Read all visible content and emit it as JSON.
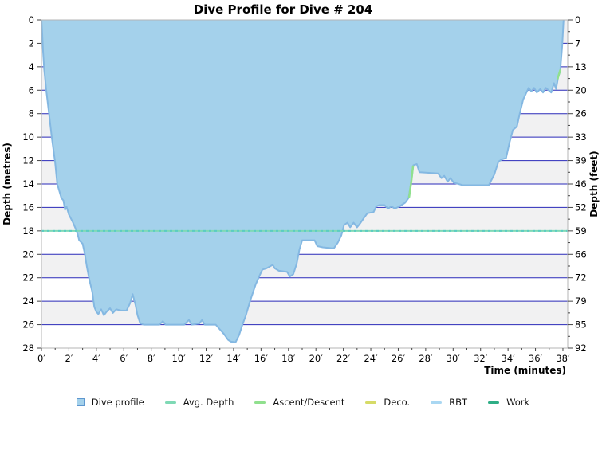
{
  "title": "Dive Profile for Dive # 204",
  "chart_data": {
    "type": "area",
    "title": "Dive Profile for Dive # 204",
    "xlabel": "Time (minutes)",
    "ylabel_left": "Depth (metres)",
    "ylabel_right": "Depth (feet)",
    "xlim": [
      0,
      38.35
    ],
    "ylim": [
      0,
      28
    ],
    "grid": "horizontal-blue-lines-with-alternating-gray-bands",
    "legend_position": "bottom-center",
    "x_tick_values": [
      0,
      2,
      4,
      6,
      8,
      10,
      12,
      14,
      16,
      18,
      20,
      22,
      24,
      26,
      28,
      30,
      32,
      34,
      36,
      38
    ],
    "x_tick_labels": [
      "0′",
      "2′",
      "4′",
      "6′",
      "8′",
      "10′",
      "12′",
      "14′",
      "16′",
      "18′",
      "20′",
      "22′",
      "24′",
      "26′",
      "28′",
      "30′",
      "32′",
      "34′",
      "36′",
      "38′"
    ],
    "y_tick_values_m": [
      0,
      2,
      4,
      6,
      8,
      10,
      12,
      14,
      16,
      18,
      20,
      22,
      24,
      26,
      28
    ],
    "y_tick_labels_left_m": [
      "0",
      "2",
      "4",
      "6",
      "8",
      "10",
      "12",
      "14",
      "16",
      "18",
      "20",
      "22",
      "24",
      "26",
      "28"
    ],
    "y_tick_labels_right_ft": [
      "0",
      "7",
      "13",
      "20",
      "26",
      "33",
      "39",
      "46",
      "52",
      "59",
      "66",
      "72",
      "79",
      "85",
      "92"
    ],
    "avg_depth_m": 18,
    "series": [
      {
        "name": "Dive profile",
        "unit_x": "minutes",
        "unit_y": "metres",
        "points": [
          [
            0,
            0
          ],
          [
            0.06,
            1.2
          ],
          [
            0.12,
            2.8
          ],
          [
            0.2,
            4.2
          ],
          [
            0.35,
            6.0
          ],
          [
            0.55,
            8.0
          ],
          [
            0.75,
            10.0
          ],
          [
            1.0,
            12.2
          ],
          [
            1.15,
            14.0
          ],
          [
            1.45,
            15.2
          ],
          [
            1.6,
            15.4
          ],
          [
            1.72,
            16.2
          ],
          [
            1.82,
            15.9
          ],
          [
            2.0,
            16.6
          ],
          [
            2.3,
            17.3
          ],
          [
            2.6,
            18.1
          ],
          [
            2.75,
            18.8
          ],
          [
            3.0,
            19.1
          ],
          [
            3.15,
            19.9
          ],
          [
            3.3,
            21.0
          ],
          [
            3.5,
            22.2
          ],
          [
            3.7,
            23.2
          ],
          [
            3.85,
            24.5
          ],
          [
            4.0,
            24.9
          ],
          [
            4.15,
            25.1
          ],
          [
            4.35,
            24.7
          ],
          [
            4.55,
            25.2
          ],
          [
            4.75,
            24.9
          ],
          [
            5.0,
            24.6
          ],
          [
            5.2,
            25.0
          ],
          [
            5.45,
            24.7
          ],
          [
            5.8,
            24.8
          ],
          [
            6.2,
            24.8
          ],
          [
            6.45,
            24.2
          ],
          [
            6.65,
            23.4
          ],
          [
            6.85,
            24.3
          ],
          [
            7.0,
            25.2
          ],
          [
            7.2,
            25.9
          ],
          [
            7.45,
            26.0
          ],
          [
            8.6,
            26.0
          ],
          [
            8.85,
            25.7
          ],
          [
            9.05,
            26.0
          ],
          [
            10.4,
            26.0
          ],
          [
            10.75,
            25.6
          ],
          [
            10.95,
            26.0
          ],
          [
            11.5,
            25.9
          ],
          [
            11.7,
            25.6
          ],
          [
            11.9,
            26.0
          ],
          [
            12.7,
            26.0
          ],
          [
            13.0,
            26.4
          ],
          [
            13.3,
            26.8
          ],
          [
            13.6,
            27.3
          ],
          [
            13.8,
            27.45
          ],
          [
            14.15,
            27.5
          ],
          [
            14.4,
            26.9
          ],
          [
            14.65,
            26.0
          ],
          [
            14.9,
            25.2
          ],
          [
            15.2,
            24.0
          ],
          [
            15.6,
            22.6
          ],
          [
            15.9,
            21.8
          ],
          [
            16.1,
            21.3
          ],
          [
            16.4,
            21.2
          ],
          [
            16.7,
            21.0
          ],
          [
            16.85,
            20.9
          ],
          [
            17.0,
            21.2
          ],
          [
            17.3,
            21.4
          ],
          [
            17.9,
            21.5
          ],
          [
            18.1,
            21.9
          ],
          [
            18.35,
            21.7
          ],
          [
            18.6,
            20.8
          ],
          [
            18.8,
            19.6
          ],
          [
            19.0,
            18.8
          ],
          [
            19.9,
            18.8
          ],
          [
            20.1,
            19.3
          ],
          [
            20.5,
            19.4
          ],
          [
            21.3,
            19.5
          ],
          [
            21.6,
            19.0
          ],
          [
            21.85,
            18.4
          ],
          [
            22.05,
            17.5
          ],
          [
            22.3,
            17.3
          ],
          [
            22.5,
            17.7
          ],
          [
            22.75,
            17.3
          ],
          [
            23.0,
            17.7
          ],
          [
            23.2,
            17.4
          ],
          [
            23.5,
            16.9
          ],
          [
            23.75,
            16.5
          ],
          [
            24.2,
            16.4
          ],
          [
            24.4,
            15.9
          ],
          [
            24.6,
            15.8
          ],
          [
            25.0,
            15.8
          ],
          [
            25.25,
            16.1
          ],
          [
            25.5,
            15.9
          ],
          [
            25.75,
            16.1
          ],
          [
            26.1,
            15.9
          ],
          [
            26.5,
            15.6
          ],
          [
            26.75,
            15.2
          ],
          [
            26.95,
            13.8
          ],
          [
            27.1,
            12.4
          ],
          [
            27.35,
            12.3
          ],
          [
            27.55,
            13.0
          ],
          [
            28.9,
            13.1
          ],
          [
            29.15,
            13.5
          ],
          [
            29.35,
            13.3
          ],
          [
            29.6,
            13.8
          ],
          [
            29.8,
            13.5
          ],
          [
            30.05,
            13.9
          ],
          [
            30.4,
            14.0
          ],
          [
            30.7,
            14.1
          ],
          [
            32.6,
            14.1
          ],
          [
            33.0,
            13.2
          ],
          [
            33.3,
            12.1
          ],
          [
            33.55,
            11.9
          ],
          [
            33.85,
            11.8
          ],
          [
            34.1,
            10.5
          ],
          [
            34.35,
            9.4
          ],
          [
            34.65,
            9.1
          ],
          [
            34.85,
            8.0
          ],
          [
            35.1,
            6.8
          ],
          [
            35.3,
            6.3
          ],
          [
            35.5,
            5.8
          ],
          [
            35.7,
            6.1
          ],
          [
            35.9,
            5.8
          ],
          [
            36.1,
            6.2
          ],
          [
            36.35,
            5.9
          ],
          [
            36.55,
            6.2
          ],
          [
            36.75,
            5.8
          ],
          [
            36.95,
            6.0
          ],
          [
            37.15,
            6.2
          ],
          [
            37.35,
            5.4
          ],
          [
            37.5,
            5.9
          ],
          [
            37.65,
            4.9
          ],
          [
            37.8,
            4.4
          ],
          [
            37.95,
            2.2
          ],
          [
            38.05,
            0
          ]
        ]
      }
    ],
    "ascent_descent_segments": [
      [
        [
          26.8,
          15.1
        ],
        [
          26.95,
          13.8
        ],
        [
          27.08,
          12.5
        ]
      ],
      [
        [
          37.62,
          5.0
        ],
        [
          37.8,
          4.3
        ]
      ]
    ],
    "colors": {
      "profile_fill": "#a4d1eb",
      "profile_outline": "#84b8e2",
      "gridline_blue": "#2a2ab9",
      "band_gray": "#f1f1f2",
      "plot_border": "#b4b4b4",
      "avg_depth_line": "#7fd9b5",
      "avg_depth_dash": "#5accc2",
      "ascent_descent": "#90e08e",
      "tick": "#444444",
      "text": "#000000"
    },
    "legend": [
      {
        "label": "Dive profile",
        "color": "#a4d1eb",
        "border": "#5e97cf",
        "type": "square"
      },
      {
        "label": "Avg. Depth",
        "color": "#7fd9b5",
        "type": "line"
      },
      {
        "label": "Ascent/Descent",
        "color": "#90e08e",
        "type": "line"
      },
      {
        "label": "Deco.",
        "color": "#d6db67",
        "type": "line"
      },
      {
        "label": "RBT",
        "color": "#a9d7f2",
        "type": "line"
      },
      {
        "label": "Work",
        "color": "#2fae86",
        "type": "line"
      }
    ]
  }
}
